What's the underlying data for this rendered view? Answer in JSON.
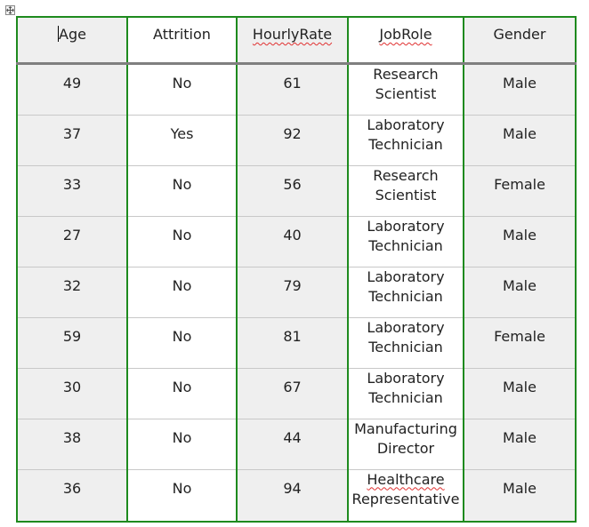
{
  "table": {
    "headers": [
      "Age",
      "Attrition",
      "HourlyRate",
      "JobRole",
      "Gender"
    ],
    "rows": [
      {
        "age": "49",
        "attrition": "No",
        "hourly_rate": "61",
        "job_role": [
          "Research",
          "Scientist"
        ],
        "gender": "Male"
      },
      {
        "age": "37",
        "attrition": "Yes",
        "hourly_rate": "92",
        "job_role": [
          "Laboratory",
          "Technician"
        ],
        "gender": "Male"
      },
      {
        "age": "33",
        "attrition": "No",
        "hourly_rate": "56",
        "job_role": [
          "Research",
          "Scientist"
        ],
        "gender": "Female"
      },
      {
        "age": "27",
        "attrition": "No",
        "hourly_rate": "40",
        "job_role": [
          "Laboratory",
          "Technician"
        ],
        "gender": "Male"
      },
      {
        "age": "32",
        "attrition": "No",
        "hourly_rate": "79",
        "job_role": [
          "Laboratory",
          "Technician"
        ],
        "gender": "Male"
      },
      {
        "age": "59",
        "attrition": "No",
        "hourly_rate": "81",
        "job_role": [
          "Laboratory",
          "Technician"
        ],
        "gender": "Female"
      },
      {
        "age": "30",
        "attrition": "No",
        "hourly_rate": "67",
        "job_role": [
          "Laboratory",
          "Technician"
        ],
        "gender": "Male"
      },
      {
        "age": "38",
        "attrition": "No",
        "hourly_rate": "44",
        "job_role": [
          "Manufacturing",
          "Director"
        ],
        "gender": "Male"
      },
      {
        "age": "36",
        "attrition": "No",
        "hourly_rate": "94",
        "job_role": [
          "Healthcare",
          "Representative"
        ],
        "gender": "Male"
      }
    ]
  },
  "icons": {
    "move_handle": "move-arrows-icon"
  },
  "colors": {
    "border_vertical": "#1e8a1e",
    "header_rule": "#7f7f7f",
    "shaded_cell": "#efefef",
    "spellcheck": "#e03030"
  }
}
